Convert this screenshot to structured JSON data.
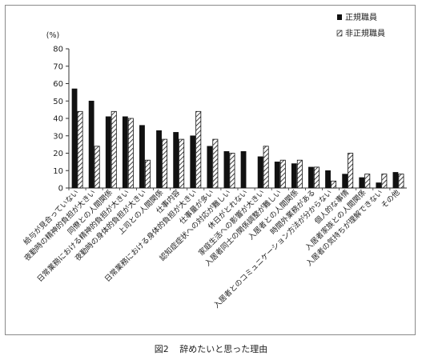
{
  "caption": {
    "number": "図2",
    "title": "辞めたいと思った理由"
  },
  "chart_data": {
    "type": "bar",
    "unit_label": "(%)",
    "ylim": [
      0,
      80
    ],
    "yticks": [
      0,
      10,
      20,
      30,
      40,
      50,
      60,
      70,
      80
    ],
    "grid": false,
    "legend_position": "top-right",
    "categories": [
      "給与が見合っていない",
      "夜勤時の精神的負担が大きい",
      "同僚との人間関係",
      "日常業務における精神的負担が大きい",
      "夜勤時の身体的負担が大きい",
      "上司との人間関係",
      "仕事内容",
      "日常業務における身体的負担が大きい",
      "仕事量が多い",
      "認知症症状への対応が難しい",
      "休日がとれない",
      "家庭生活への影響が大きい",
      "入居者同士の関係調整が難しい",
      "入居者との人間関係",
      "時間外業務がある",
      "入居者とのコミュニケーション方法が分からない",
      "個人的な事情",
      "入居者家族との人間関係",
      "入居者の気持ちが理解できない",
      "その他"
    ],
    "series": [
      {
        "name": "正規職員",
        "style": "solid",
        "color": "#111111",
        "values": [
          57,
          50,
          41,
          41,
          36,
          33,
          32,
          30,
          24,
          21,
          21,
          18,
          15,
          14,
          12,
          10,
          8,
          6,
          3,
          9
        ]
      },
      {
        "name": "非正規職員",
        "style": "hatched",
        "color": "#111111",
        "values": [
          44,
          24,
          44,
          40,
          16,
          28,
          28,
          44,
          28,
          20,
          0,
          24,
          16,
          16,
          12,
          4,
          20,
          8,
          8,
          8
        ]
      }
    ]
  }
}
